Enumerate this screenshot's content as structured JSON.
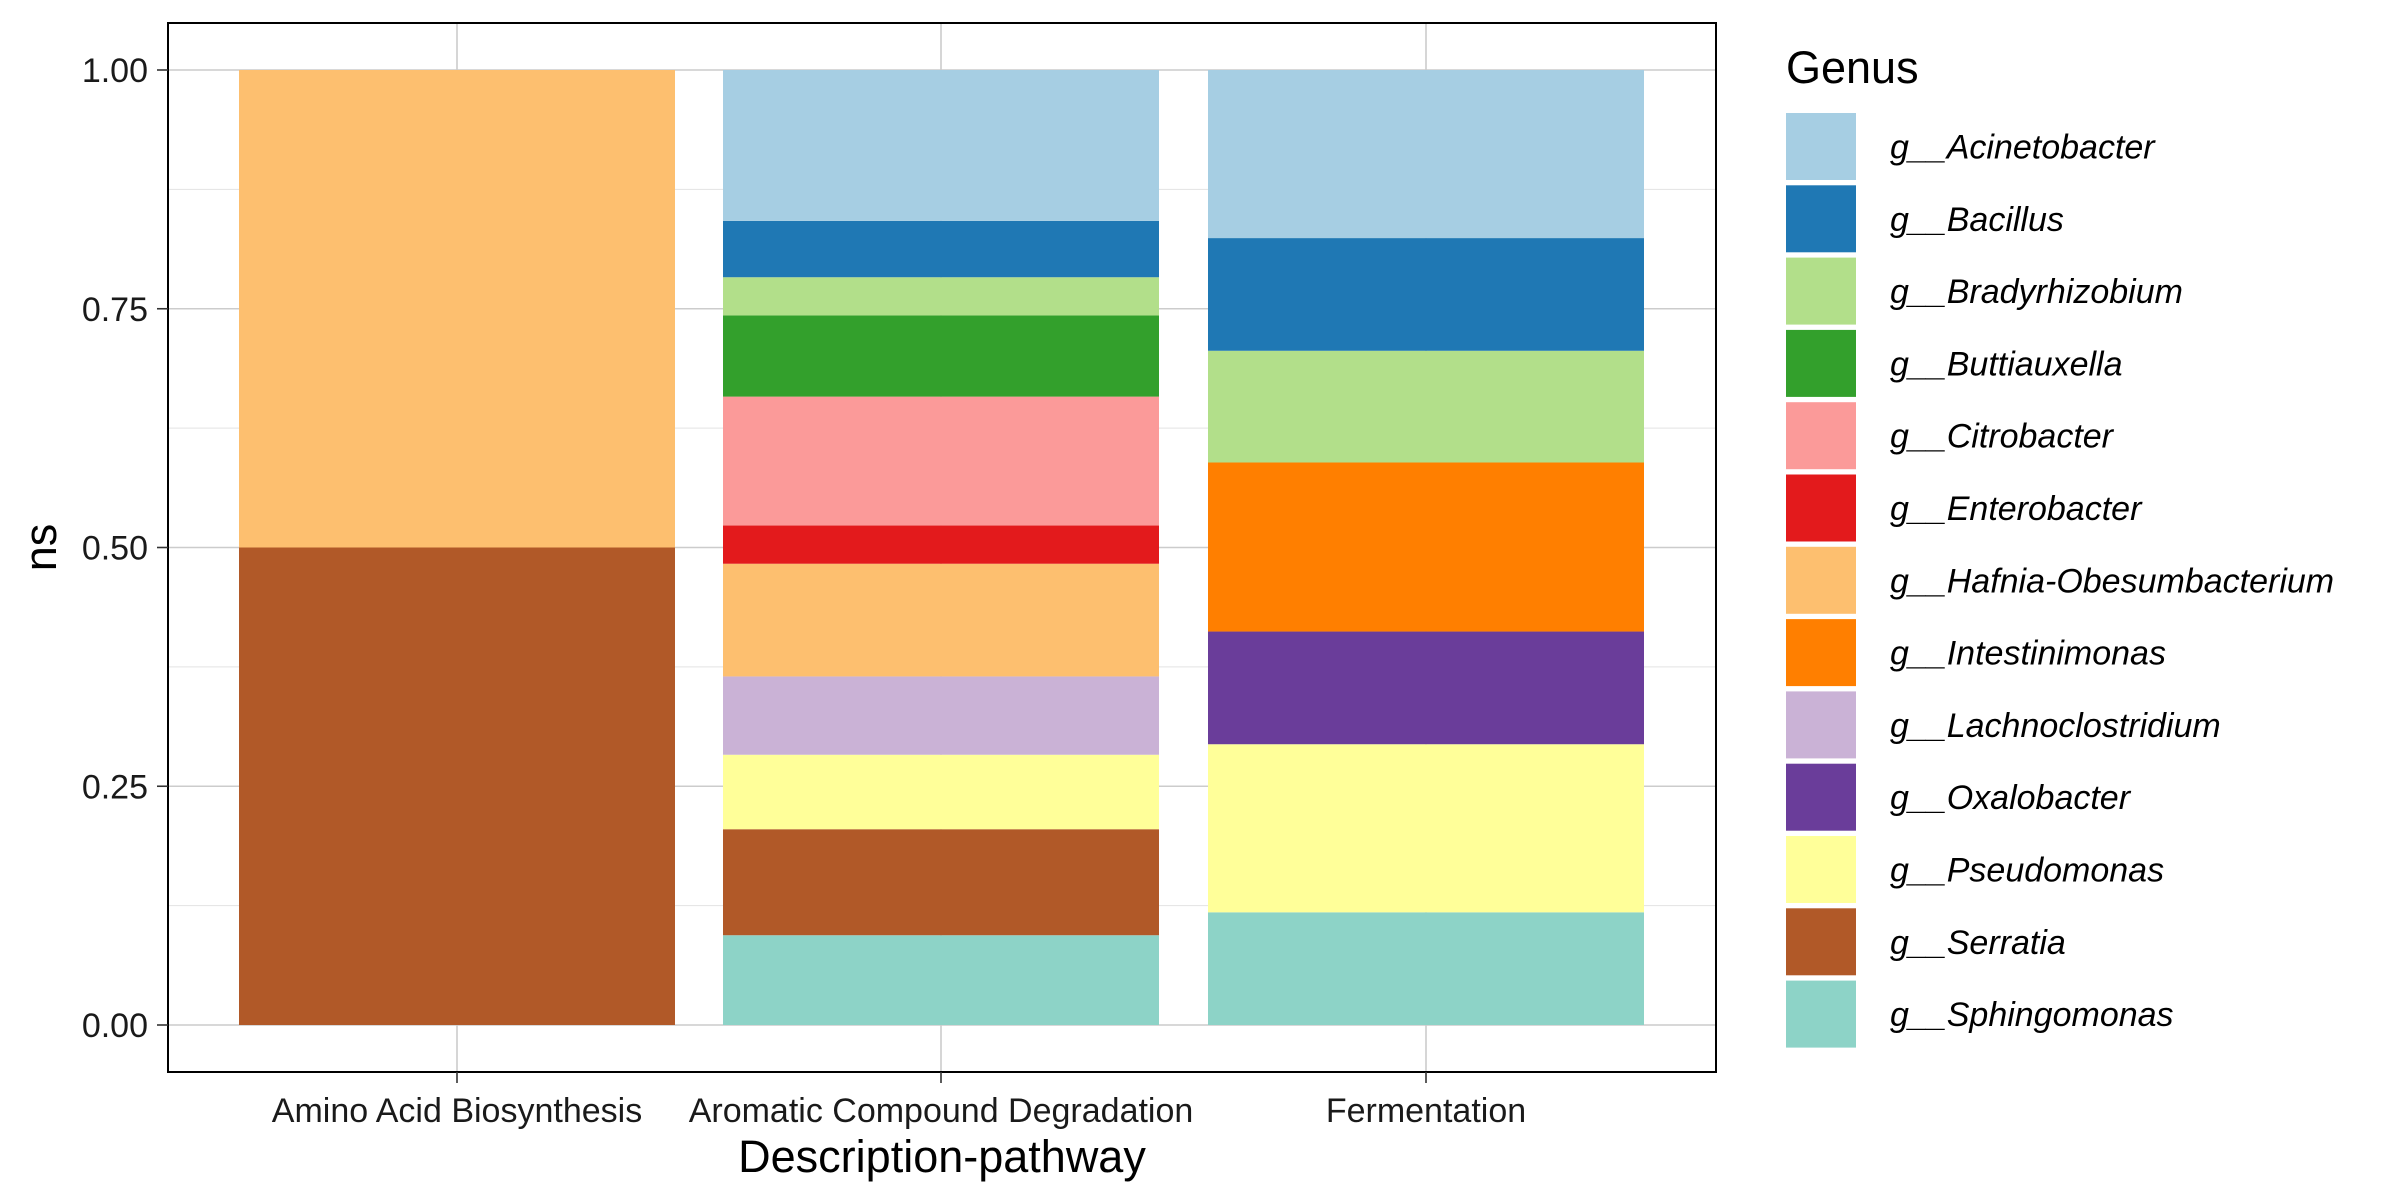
{
  "chart_data": {
    "type": "bar",
    "stacked": true,
    "title": "",
    "xlabel": "Description-pathway",
    "ylabel": "ns",
    "ylim": [
      0,
      1.05
    ],
    "yticks": [
      0,
      0.25,
      0.5,
      0.75,
      1.0
    ],
    "ytick_labels": [
      "0.00",
      "0.25",
      "0.50",
      "0.75",
      "1.00"
    ],
    "grid": true,
    "legend_position": "right",
    "legend_title": "Genus",
    "categories": [
      "Amino Acid Biosynthesis",
      "Aromatic Compound Degradation",
      "Fermentation"
    ],
    "series": [
      {
        "name": "g__Acinetobacter",
        "color": "#A6CEE3",
        "values": [
          0,
          0.158,
          0.176
        ]
      },
      {
        "name": "g__Bacillus",
        "color": "#1F78B4",
        "values": [
          0,
          0.059,
          0.118
        ]
      },
      {
        "name": "g__Bradyrhizobium",
        "color": "#B2DF8A",
        "values": [
          0,
          0.04,
          0.117
        ]
      },
      {
        "name": "g__Buttiauxella",
        "color": "#33A02C",
        "values": [
          0,
          0.085,
          0
        ]
      },
      {
        "name": "g__Citrobacter",
        "color": "#FB9A99",
        "values": [
          0,
          0.135,
          0
        ]
      },
      {
        "name": "g__Enterobacter",
        "color": "#E31A1C",
        "values": [
          0,
          0.04,
          0
        ]
      },
      {
        "name": "g__Hafnia-Obesumbacterium",
        "color": "#FDBF6F",
        "values": [
          0.5,
          0.118,
          0
        ]
      },
      {
        "name": "g__Intestinimonas",
        "color": "#FF7F00",
        "values": [
          0,
          0,
          0.177
        ]
      },
      {
        "name": "g__Lachnoclostridium",
        "color": "#CAB2D6",
        "values": [
          0,
          0.082,
          0
        ]
      },
      {
        "name": "g__Oxalobacter",
        "color": "#6A3D9A",
        "values": [
          0,
          0,
          0.118
        ]
      },
      {
        "name": "g__Pseudomonas",
        "color": "#FFFF99",
        "values": [
          0,
          0.078,
          0.176
        ]
      },
      {
        "name": "g__Serratia",
        "color": "#B15928",
        "values": [
          0.5,
          0.111,
          0
        ]
      },
      {
        "name": "g__Sphingomonas",
        "color": "#8DD3C7",
        "values": [
          0,
          0.094,
          0.118
        ]
      }
    ]
  }
}
